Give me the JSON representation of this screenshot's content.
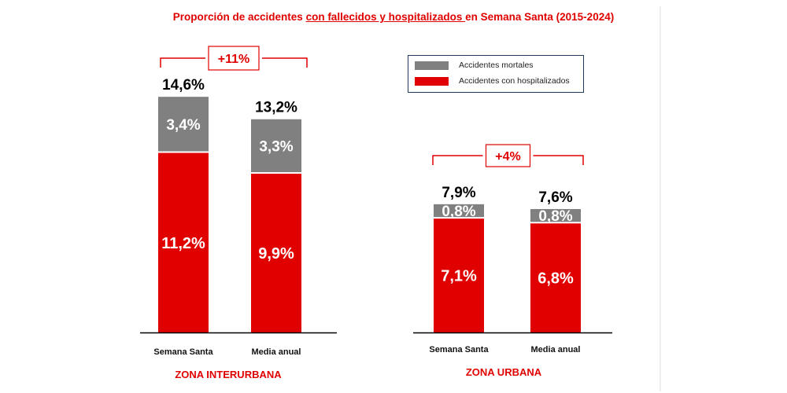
{
  "title": {
    "pre": "Proporción de accidentes ",
    "underlined": "con fallecidos y hospitalizados ",
    "post": "en Semana Santa (2015-2024)"
  },
  "legend": [
    {
      "label": "Accidentes mortales",
      "color": "#808080"
    },
    {
      "label": "Accidentes con hospitalizados",
      "color": "#e00000"
    }
  ],
  "chart_data": [
    {
      "type": "bar",
      "stacked": true,
      "zone": "ZONA INTERURBANA",
      "categories": [
        "Semana Santa",
        "Media anual"
      ],
      "series": [
        {
          "name": "Accidentes con hospitalizados",
          "values": [
            11.2,
            9.9
          ],
          "labels": [
            "11,2%",
            "9,9%"
          ],
          "color": "#e00000"
        },
        {
          "name": "Accidentes mortales",
          "values": [
            3.4,
            3.3
          ],
          "labels": [
            "3,4%",
            "3,3%"
          ],
          "color": "#808080"
        }
      ],
      "totals": [
        "14,6%",
        "13,2%"
      ],
      "comparison": "+11%"
    },
    {
      "type": "bar",
      "stacked": true,
      "zone": "ZONA URBANA",
      "categories": [
        "Semana Santa",
        "Media anual"
      ],
      "series": [
        {
          "name": "Accidentes con hospitalizados",
          "values": [
            7.1,
            6.8
          ],
          "labels": [
            "7,1%",
            "6,8%"
          ],
          "color": "#e00000"
        },
        {
          "name": "Accidentes mortales",
          "values": [
            0.8,
            0.8
          ],
          "labels": [
            "0,8%",
            "0,8%"
          ],
          "color": "#808080"
        }
      ],
      "totals": [
        "7,9%",
        "7,6%"
      ],
      "comparison": "+4%"
    }
  ]
}
